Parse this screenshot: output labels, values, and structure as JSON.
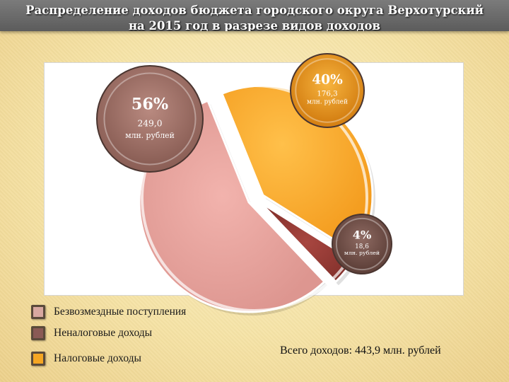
{
  "title": "Распределение доходов бюджета городского округа Верхотурский\nна 2015 год в разрезе видов доходов",
  "chart_data": {
    "type": "pie",
    "title": "Распределение доходов бюджета городского округа Верхотурский на 2015 год в разрезе видов доходов",
    "slices": [
      {
        "name": "Безвозмездные поступления",
        "percent": 56,
        "value": 249.0,
        "percent_label": "56%",
        "value_label": "249,0",
        "unit_label": "млн. рублей",
        "color": "#e7a19c"
      },
      {
        "name": "Неналоговые доходы",
        "percent": 4,
        "value": 18.6,
        "percent_label": "4%",
        "value_label": "18,6",
        "unit_label": "млн. рублей",
        "color": "#9a3b35"
      },
      {
        "name": "Налоговые доходы",
        "percent": 40,
        "value": 176.3,
        "percent_label": "40%",
        "value_label": "176,3",
        "unit_label": "млн. рублей",
        "color": "#f9ae33"
      }
    ]
  },
  "legend": [
    {
      "label": "Безвозмездные поступления",
      "color": "#d8a8a0"
    },
    {
      "label": "Неналоговые доходы",
      "color": "#8a5a55"
    },
    {
      "label": "Налоговые доходы",
      "color": "#f5a623"
    }
  ],
  "total_text": "Всего доходов: 443,9 млн. рублей"
}
